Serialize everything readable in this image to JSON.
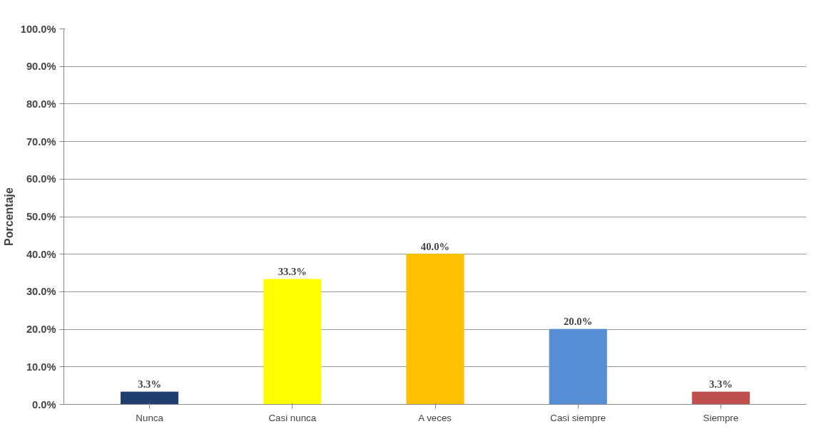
{
  "chart_data": {
    "type": "bar",
    "ylabel": "Porcentaje",
    "categories": [
      "Nunca",
      "Casi nunca",
      "A veces",
      "Casi siempre",
      "Siempre"
    ],
    "values": [
      3.3,
      33.3,
      40.0,
      20.0,
      3.3
    ],
    "colors": [
      "#1f3f6e",
      "#ffff00",
      "#ffc000",
      "#558ed5",
      "#c0504d"
    ],
    "value_labels": [
      "3.3%",
      "33.3%",
      "40.0%",
      "20.0%",
      "3.3%"
    ],
    "ylim": [
      0,
      100
    ],
    "yticks": [
      {
        "value": 0,
        "label": "0.0%"
      },
      {
        "value": 10,
        "label": "10.0%"
      },
      {
        "value": 20,
        "label": "20.0%"
      },
      {
        "value": 30,
        "label": "30.0%"
      },
      {
        "value": 40,
        "label": "40.0%"
      },
      {
        "value": 50,
        "label": "50.0%"
      },
      {
        "value": 60,
        "label": "60.0%"
      },
      {
        "value": 70,
        "label": "70.0%"
      },
      {
        "value": 80,
        "label": "80.0%"
      },
      {
        "value": 90,
        "label": "90.0%"
      },
      {
        "value": 100,
        "label": "100.0%"
      }
    ],
    "grid": "y"
  }
}
